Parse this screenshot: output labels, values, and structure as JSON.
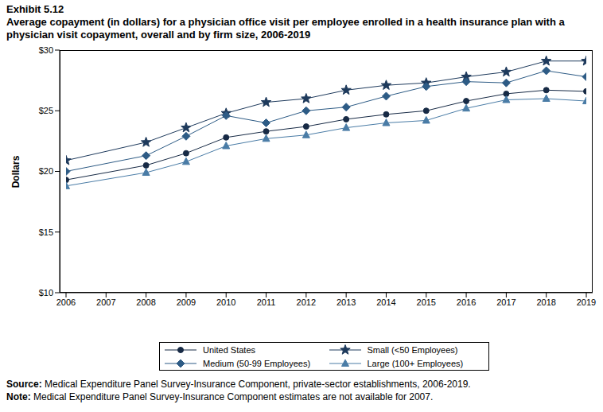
{
  "chart_data": {
    "type": "line",
    "title": "Exhibit 5.12",
    "subtitle": "Average copayment (in dollars) for a physician office visit per employee enrolled in a health insurance plan with a physician visit copayment, overall and by firm size, 2006-2019",
    "y_label": "Dollars",
    "x": [
      2006,
      2008,
      2009,
      2010,
      2011,
      2012,
      2013,
      2014,
      2015,
      2016,
      2017,
      2018,
      2019
    ],
    "xlim": [
      2006,
      2019
    ],
    "xticks": [
      2006,
      2007,
      2008,
      2009,
      2010,
      2011,
      2012,
      2013,
      2014,
      2015,
      2016,
      2017,
      2018,
      2019
    ],
    "ylim": [
      10,
      30
    ],
    "yticks": [
      {
        "value": 10,
        "label": "$10"
      },
      {
        "value": 15,
        "label": "$15"
      },
      {
        "value": 20,
        "label": "$20"
      },
      {
        "value": 25,
        "label": "$25"
      },
      {
        "value": 30,
        "label": "$30"
      }
    ],
    "grid": false,
    "series": [
      {
        "name": "United States",
        "color": "#172a45",
        "marker": "circle",
        "values": [
          19.3,
          20.5,
          21.5,
          22.8,
          23.3,
          23.7,
          24.3,
          24.7,
          25.0,
          25.8,
          26.4,
          26.7,
          26.6
        ]
      },
      {
        "name": "Small (<50 Employees)",
        "color": "#1e3a5c",
        "marker": "star",
        "values": [
          20.9,
          22.4,
          23.6,
          24.8,
          25.7,
          26.0,
          26.7,
          27.1,
          27.3,
          27.8,
          28.2,
          29.1,
          29.1
        ]
      },
      {
        "name": "Medium (50-99 Employees)",
        "color": "#2d5b85",
        "marker": "diamond",
        "values": [
          20.0,
          21.3,
          22.9,
          24.6,
          24.0,
          25.0,
          25.3,
          26.2,
          27.0,
          27.4,
          27.3,
          28.3,
          27.8
        ]
      },
      {
        "name": "Large (100+ Employees)",
        "color": "#4a7ca6",
        "marker": "triangle",
        "values": [
          18.8,
          19.9,
          20.8,
          22.1,
          22.7,
          23.0,
          23.6,
          24.0,
          24.2,
          25.2,
          25.9,
          26.0,
          25.8
        ]
      }
    ],
    "notes": [
      {
        "label": "Source:",
        "text": "Medical Expenditure Panel Survey-Insurance Component, private-sector establishments, 2006-2019."
      },
      {
        "label": "Note:",
        "text": "Medical Expenditure Panel Survey-Insurance Component estimates are not available for 2007."
      }
    ]
  }
}
